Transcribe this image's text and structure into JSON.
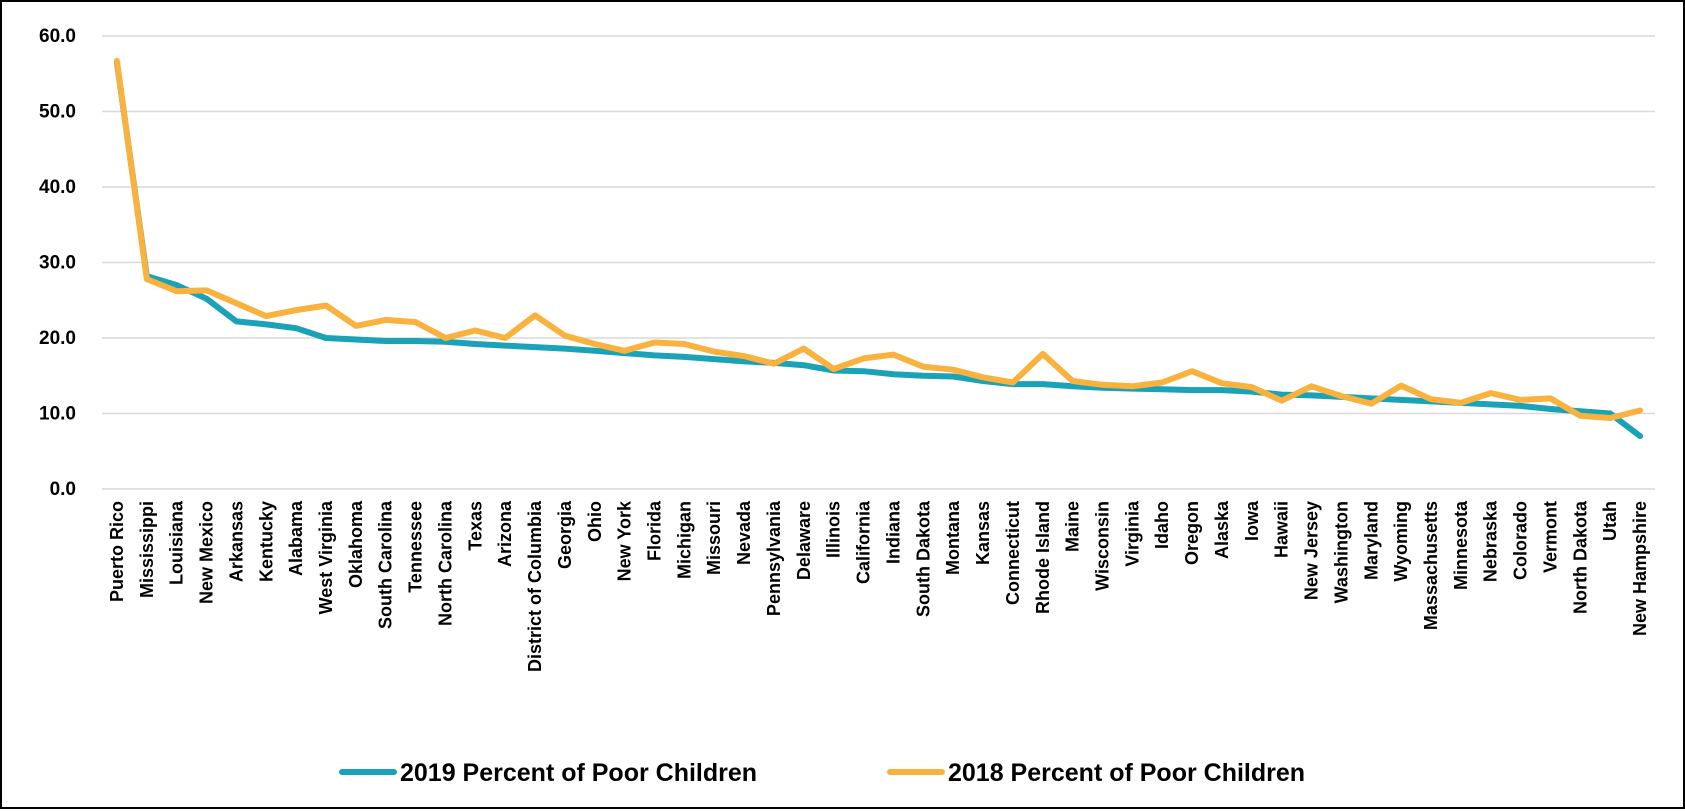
{
  "chart_data": {
    "type": "line",
    "title": "",
    "xlabel": "",
    "ylabel": "",
    "ylim": [
      0,
      60
    ],
    "yticks": [
      "0.0",
      "10.0",
      "20.0",
      "30.0",
      "40.0",
      "50.0",
      "60.0"
    ],
    "grid": true,
    "legend_position": "bottom",
    "categories": [
      "Puerto Rico",
      "Mississippi",
      "Louisiana",
      "New Mexico",
      "Arkansas",
      "Kentucky",
      "Alabama",
      "West Virginia",
      "Oklahoma",
      "South Carolina",
      "Tennessee",
      "North Carolina",
      "Texas",
      "Arizona",
      "District of Columbia",
      "Georgia",
      "Ohio",
      "New York",
      "Florida",
      "Michigan",
      "Missouri",
      "Nevada",
      "Pennsylvania",
      "Delaware",
      "Illinois",
      "California",
      "Indiana",
      "South Dakota",
      "Montana",
      "Kansas",
      "Connecticut",
      "Rhode Island",
      "Maine",
      "Wisconsin",
      "Virginia",
      "Idaho",
      "Oregon",
      "Alaska",
      "Iowa",
      "Hawaii",
      "New Jersey",
      "Washington",
      "Maryland",
      "Wyoming",
      "Massachusetts",
      "Minnesota",
      "Nebraska",
      "Colorado",
      "Vermont",
      "North Dakota",
      "Utah",
      "New Hampshire"
    ],
    "series": [
      {
        "name": "2019 Percent of Poor Children",
        "color": "#1aa3b8",
        "values": [
          56.5,
          28.2,
          27.0,
          25.2,
          22.2,
          21.8,
          21.3,
          20.0,
          19.8,
          19.6,
          19.6,
          19.5,
          19.2,
          19.0,
          18.8,
          18.6,
          18.3,
          18.0,
          17.7,
          17.5,
          17.2,
          16.9,
          16.7,
          16.4,
          15.7,
          15.6,
          15.2,
          15.0,
          14.9,
          14.3,
          13.9,
          13.9,
          13.6,
          13.4,
          13.3,
          13.2,
          13.1,
          13.1,
          12.9,
          12.5,
          12.4,
          12.2,
          12.0,
          11.8,
          11.6,
          11.4,
          11.2,
          11.0,
          10.6,
          10.3,
          10.0,
          7.0
        ]
      },
      {
        "name": "2018 Percent of Poor Children",
        "color": "#f8b23d",
        "values": [
          56.7,
          27.8,
          26.2,
          26.3,
          24.6,
          22.9,
          23.7,
          24.3,
          21.6,
          22.4,
          22.1,
          20.0,
          21.0,
          20.0,
          23.0,
          20.3,
          19.2,
          18.3,
          19.4,
          19.2,
          18.2,
          17.6,
          16.6,
          18.6,
          15.9,
          17.3,
          17.8,
          16.2,
          15.8,
          14.8,
          14.1,
          17.9,
          14.3,
          13.8,
          13.6,
          14.1,
          15.6,
          14.0,
          13.5,
          11.7,
          13.6,
          12.3,
          11.3,
          13.7,
          11.9,
          11.4,
          12.7,
          11.8,
          12.0,
          9.7,
          9.4,
          10.4
        ]
      }
    ]
  }
}
